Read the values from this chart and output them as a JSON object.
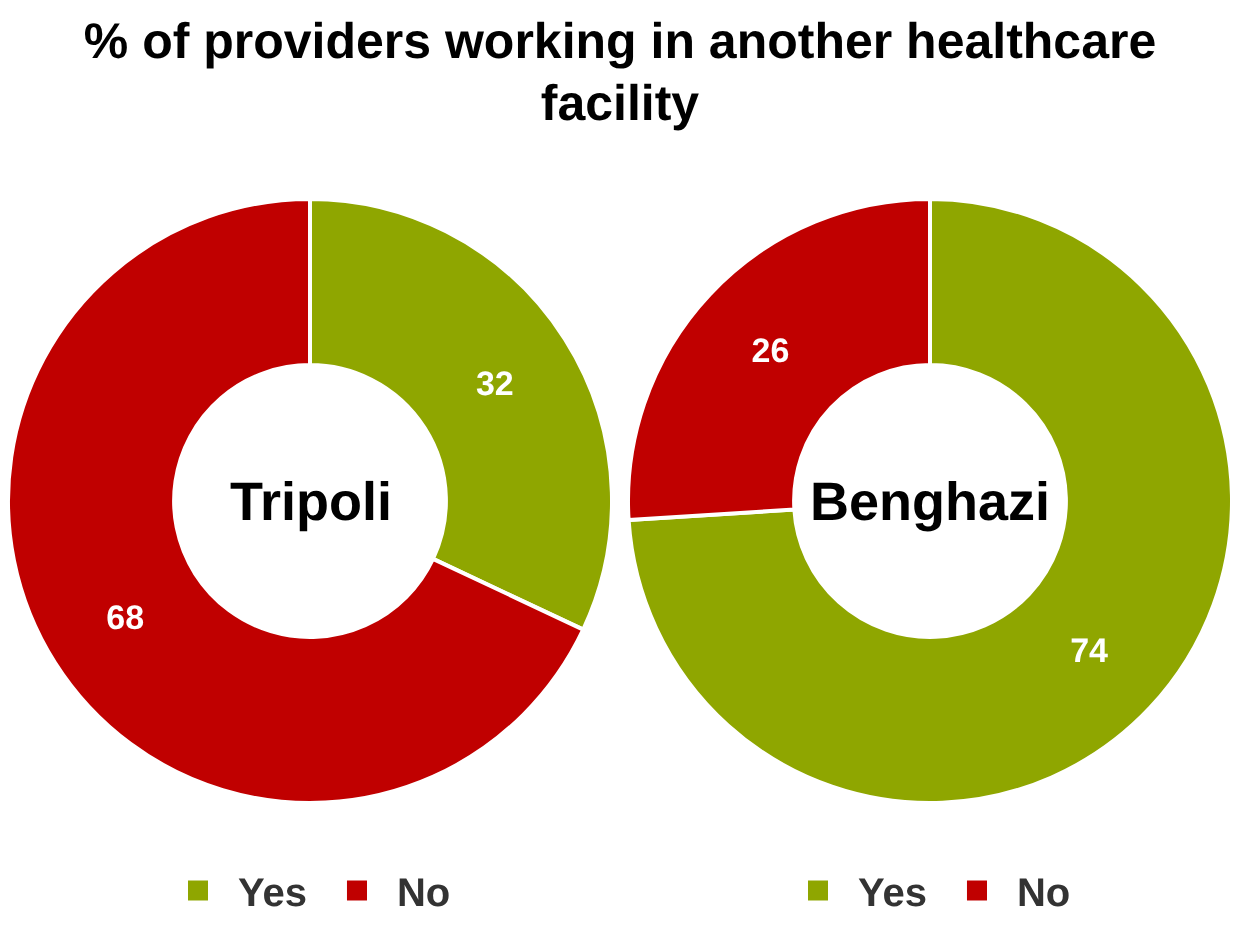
{
  "chart_data": [
    {
      "type": "donut",
      "title": "% of providers working in another healthcare facility",
      "categories": [
        "Yes",
        "No"
      ],
      "values": [
        32,
        68
      ],
      "colors": [
        "#8fa600",
        "#c00000"
      ],
      "data_labels": true,
      "legend": "bottom",
      "annotations": [
        "Tripoli"
      ]
    },
    {
      "type": "donut",
      "categories": [
        "Yes",
        "No"
      ],
      "values": [
        74,
        26
      ],
      "colors": [
        "#8fa600",
        "#c00000"
      ],
      "data_labels": true,
      "legend": "bottom",
      "annotations": [
        "Benghazi"
      ]
    }
  ]
}
